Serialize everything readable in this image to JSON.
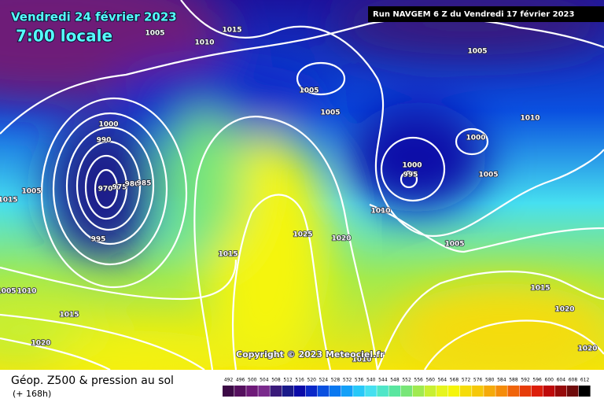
{
  "header": {
    "date": "Vendredi 24 février 2023",
    "time": "7:00 locale",
    "run": "Run NAVGEM 6 Z du Vendredi 17 février 2023"
  },
  "map": {
    "isobars": [
      1005,
      1015,
      1010,
      1005,
      1005,
      1005,
      1010,
      1000,
      990,
      1000,
      1000,
      995,
      1005,
      1005,
      970,
      975,
      980,
      985,
      1015,
      1010,
      1025,
      1020,
      995,
      1015,
      1005,
      1015,
      1005,
      1010,
      1015,
      1020,
      1020,
      1010,
      1020
    ],
    "copyright": "Copyright © 2023 Meteociel.fr"
  },
  "legend": {
    "title": "Géop. Z500 & pression au sol",
    "lead": "(+ 168h)",
    "scale": [
      492,
      496,
      500,
      504,
      508,
      512,
      516,
      520,
      524,
      528,
      532,
      536,
      540,
      544,
      548,
      552,
      556,
      560,
      564,
      568,
      572,
      576,
      580,
      584,
      588,
      592,
      596,
      600,
      604,
      608,
      612
    ],
    "colors": [
      "#3c0a46",
      "#55105e",
      "#6e1a78",
      "#7a2a8c",
      "#3a1a7a",
      "#1a1a8a",
      "#0a0aa8",
      "#0a28c8",
      "#0a50e0",
      "#0a78f0",
      "#14a0f8",
      "#28c8f8",
      "#46e0f0",
      "#50e6c8",
      "#5ae6a0",
      "#78e678",
      "#a0ea50",
      "#c8f032",
      "#e6f51e",
      "#f5f50a",
      "#f5dc0a",
      "#f5c80a",
      "#f5aa0a",
      "#f58c0a",
      "#f0640a",
      "#e63c0a",
      "#dc1e0a",
      "#be0a0a",
      "#960a0a",
      "#6e0a0a",
      "#000000"
    ]
  }
}
